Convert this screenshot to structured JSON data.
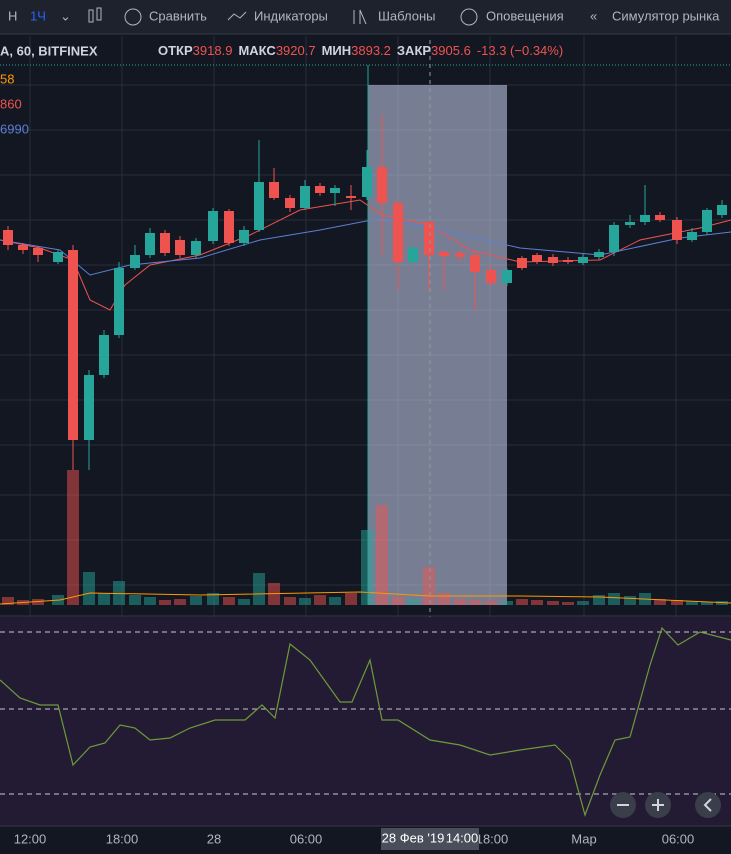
{
  "toolbar": {
    "symbol_hint": "Н",
    "interval": "1Ч",
    "compare": "Сравнить",
    "indicators": "Индикаторы",
    "templates": "Шаблоны",
    "alerts": "Оповещения",
    "replay": "Симулятор рынка"
  },
  "legend": {
    "symbol": "А, 60, BITFINEX",
    "open_label": "ОТКР",
    "open": "3918.9",
    "high_label": "МАКС",
    "high": "3920.7",
    "low_label": "МИН",
    "low": "3893.2",
    "close_label": "ЗАКР",
    "close": "3905.6",
    "change": "-13.3 (−0.34%)"
  },
  "ma_labels": [
    "58",
    "860",
    "6990"
  ],
  "time_axis": [
    "12:00",
    "18:00",
    "28",
    "06:00",
    "18:00",
    "Мар",
    "06:00"
  ],
  "crosshair_label": {
    "date": "28 Фев '19",
    "time": "14:00"
  }
}
